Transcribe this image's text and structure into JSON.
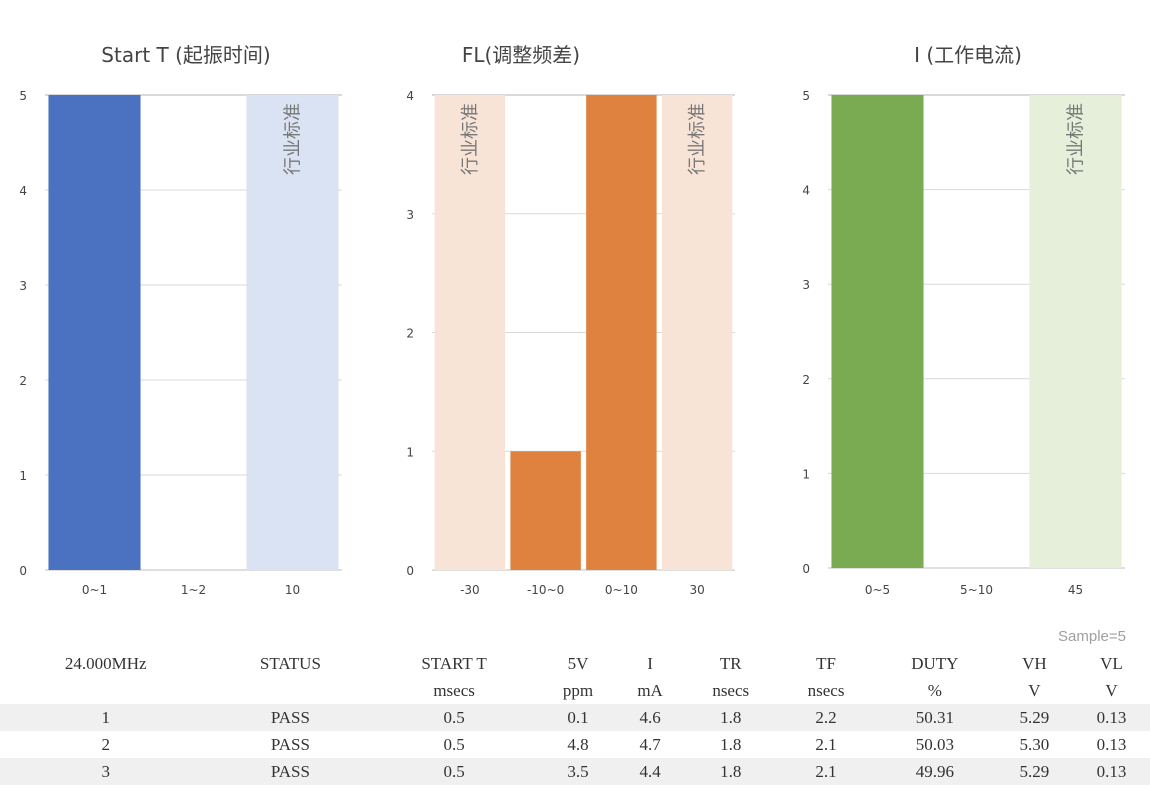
{
  "chart_data": [
    {
      "type": "bar",
      "title": "Start T (起振时间)",
      "categories": [
        "0~1",
        "1~2",
        "10"
      ],
      "values": [
        5,
        0,
        null
      ],
      "reference_band": {
        "category": "10",
        "value": 5,
        "label": "行业标准"
      },
      "ylim": [
        0,
        5
      ],
      "yticks": [
        0,
        1,
        2,
        3,
        4,
        5
      ],
      "grid": true,
      "color": "#4a72c0",
      "band_color": "#dae3f3"
    },
    {
      "type": "bar",
      "title": "FL(调整频差)",
      "categories": [
        "-30",
        "-10~0",
        "0~10",
        "30"
      ],
      "values": [
        null,
        1,
        4,
        null
      ],
      "reference_band": {
        "categories": [
          "-30",
          "30"
        ],
        "value": 4,
        "label": "行业标准"
      },
      "ylim": [
        0,
        4
      ],
      "yticks": [
        0,
        1,
        2,
        3,
        4
      ],
      "grid": true,
      "color": "#e0823f",
      "band_color": "#f8e4d6"
    },
    {
      "type": "bar",
      "title": "I (工作电流)",
      "categories": [
        "0~5",
        "5~10",
        "45"
      ],
      "values": [
        5,
        0,
        null
      ],
      "reference_band": {
        "category": "45",
        "value": 5,
        "label": "行业标准"
      },
      "ylim": [
        0,
        5
      ],
      "yticks": [
        0,
        1,
        2,
        3,
        4,
        5
      ],
      "grid": true,
      "color": "#7aaa52",
      "band_color": "#e5efd9"
    }
  ],
  "table": {
    "sample": "Sample=5",
    "headers": [
      "24.000MHz",
      "STATUS",
      "START T",
      "5V",
      "I",
      "TR",
      "TF",
      "DUTY",
      "VH",
      "VL"
    ],
    "units": [
      "",
      "",
      "msecs",
      "ppm",
      "mA",
      "nsecs",
      "nsecs",
      "%",
      "V",
      "V"
    ],
    "rows": [
      [
        "1",
        "PASS",
        "0.5",
        "0.1",
        "4.6",
        "1.8",
        "2.2",
        "50.31",
        "5.29",
        "0.13"
      ],
      [
        "2",
        "PASS",
        "0.5",
        "4.8",
        "4.7",
        "1.8",
        "2.1",
        "50.03",
        "5.30",
        "0.13"
      ],
      [
        "3",
        "PASS",
        "0.5",
        "3.5",
        "4.4",
        "1.8",
        "2.1",
        "49.96",
        "5.29",
        "0.13"
      ]
    ]
  }
}
